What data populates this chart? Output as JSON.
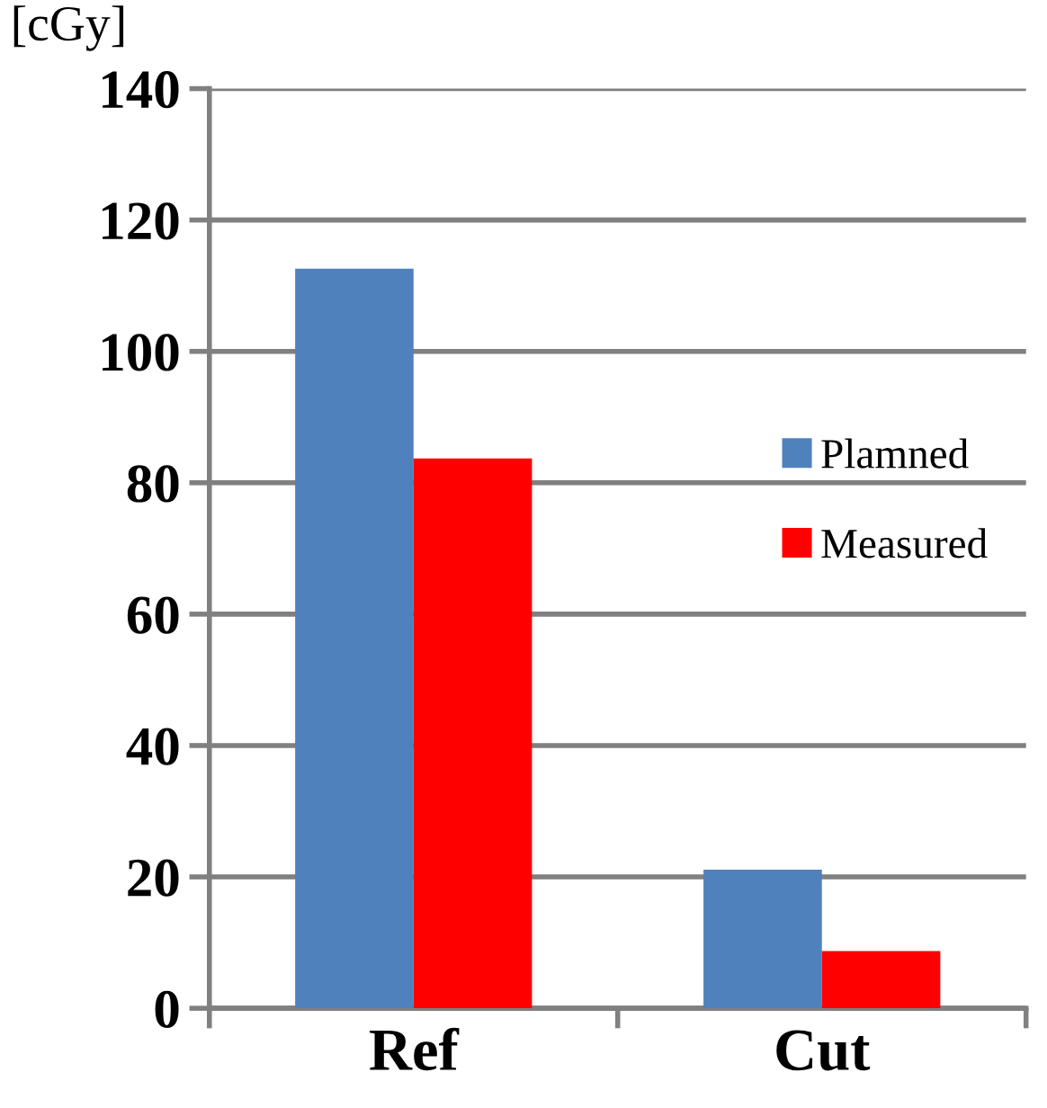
{
  "chart_data": {
    "type": "bar",
    "ylabel": "[cGy]",
    "categories": [
      "Ref",
      "Cut"
    ],
    "series": [
      {
        "name": "Plamned",
        "color": "#4f81bd",
        "values": [
          112.6,
          21.1
        ]
      },
      {
        "name": "Measured",
        "color": "#ff0000",
        "values": [
          83.7,
          8.7
        ]
      }
    ],
    "ylim": [
      0,
      140
    ],
    "yticks": [
      0,
      20,
      40,
      60,
      80,
      100,
      120,
      140
    ],
    "grid": "y",
    "legend": "right"
  }
}
